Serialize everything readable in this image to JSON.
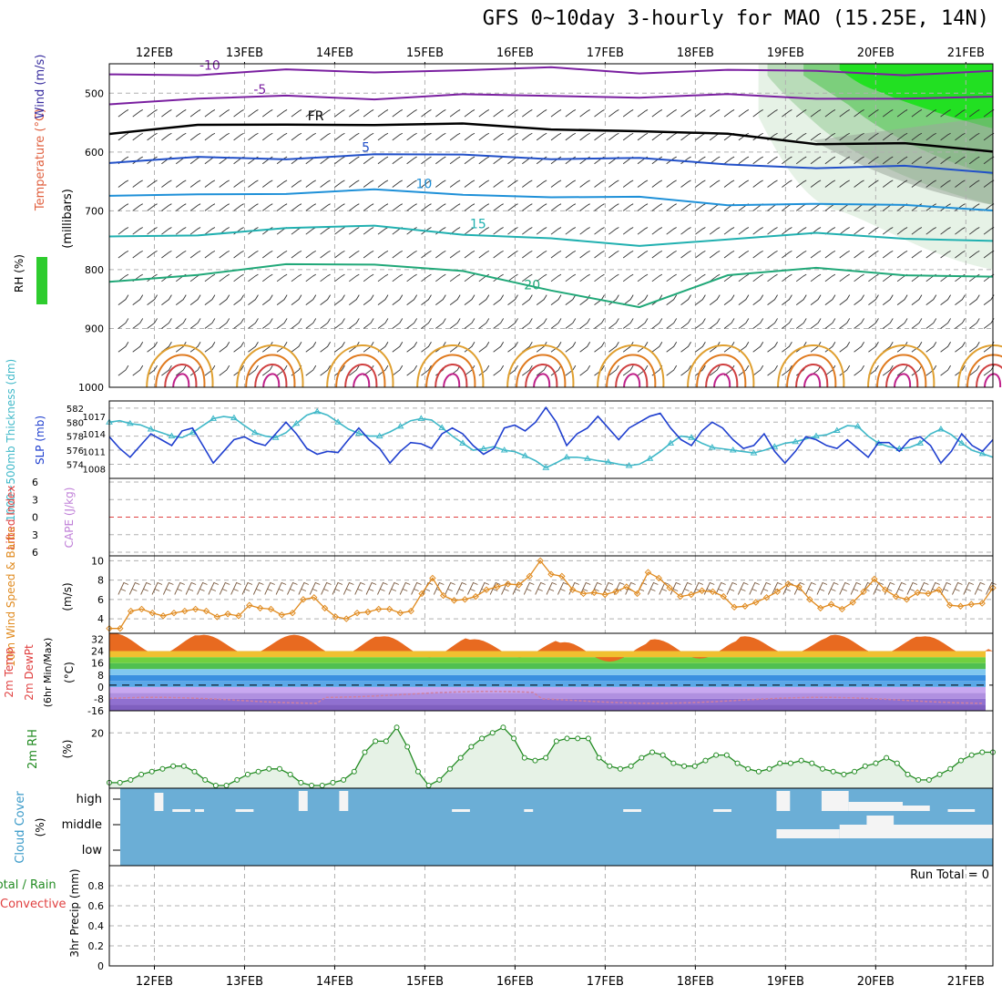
{
  "title": "GFS 0~10day 3-hourly for MAO (15.25E, 14N)",
  "date_labels": [
    "12FEB",
    "13FEB",
    "14FEB",
    "15FEB",
    "16FEB",
    "17FEB",
    "18FEB",
    "19FEB",
    "20FEB",
    "21FEB"
  ],
  "run_total": "Run Total = 0",
  "colors": {
    "grid": "#b0b0b0",
    "cloud": "#6baed6",
    "rh": "#228b22",
    "slp": "#1f3fcf",
    "thick": "#3fb8c8",
    "wind10": "#e08a1e"
  },
  "chart_data": [
    {
      "type": "line",
      "name": "upper-air",
      "ylabel_parts": [
        "RH (%)",
        "Temperature (°C)",
        "Wind (m/s)"
      ],
      "ylabel_units": "(millibars)",
      "y_ticks": [
        "500",
        "600",
        "700",
        "800",
        "900",
        "1000"
      ],
      "ylim": [
        450,
        1000
      ],
      "x_day_range": [
        11.5,
        21.3
      ],
      "isotherms": [
        {
          "label": "-10",
          "p": [
            468,
            466,
            464,
            462,
            460,
            460,
            462,
            462,
            464,
            465,
            466
          ]
        },
        {
          "label": "-5",
          "p": [
            515,
            510,
            507,
            506,
            505,
            505,
            504,
            506,
            507,
            508,
            510
          ]
        },
        {
          "label": "FR",
          "p": [
            565,
            558,
            552,
            552,
            556,
            558,
            565,
            572,
            582,
            588,
            600
          ]
        },
        {
          "label": "5",
          "p": [
            618,
            612,
            608,
            606,
            606,
            608,
            614,
            620,
            625,
            628,
            632
          ]
        },
        {
          "label": "10",
          "p": [
            678,
            672,
            668,
            668,
            670,
            676,
            680,
            686,
            690,
            692,
            695
          ]
        },
        {
          "label": "15",
          "p": [
            748,
            738,
            730,
            728,
            736,
            750,
            760,
            745,
            742,
            745,
            750
          ]
        },
        {
          "label": "20",
          "p": [
            822,
            805,
            795,
            790,
            800,
            840,
            860,
            810,
            800,
            805,
            815
          ]
        }
      ],
      "isotherm_labels": [
        "-10",
        "-5",
        "FR",
        "5",
        "10",
        "15",
        "20"
      ],
      "rh_legend": "RH (%)"
    },
    {
      "type": "line",
      "name": "thickness-slp",
      "ylabel": "1000~500mb Thickness (dm)",
      "ylabel2": "SLP (mb)",
      "left_ticks": [
        "582",
        "580",
        "578",
        "576",
        "574"
      ],
      "right_ticks": [
        "1017",
        "1014",
        "1011",
        "1008"
      ],
      "series": [
        {
          "name": "Thickness",
          "color": "#3fb8c8",
          "values": [
            580,
            580.2,
            579.8,
            579.6,
            579,
            578.5,
            578,
            577.8,
            578.5,
            579.5,
            580.5,
            580.8,
            580.6,
            579.5,
            578.5,
            578,
            577.8,
            578.5,
            579.8,
            581,
            581.5,
            581,
            580,
            579,
            578.4,
            578,
            578,
            578.6,
            579.4,
            580.2,
            580.5,
            580.3,
            579.2,
            578,
            577,
            576,
            576.2,
            576.5,
            576,
            575.8,
            575.2,
            574.5,
            573.5,
            574.2,
            575,
            575,
            574.8,
            574.5,
            574.3,
            574,
            573.8,
            574,
            574.8,
            575.8,
            577,
            578,
            577.8,
            577,
            576.4,
            576.2,
            576,
            575.8,
            575.6,
            576,
            576.5,
            577,
            577.2,
            577.6,
            578,
            578.2,
            578.8,
            579.5,
            579.4,
            578,
            577,
            576.5,
            576.2,
            576.4,
            577,
            578.3,
            579,
            578.2,
            577,
            576,
            575.5,
            575
          ]
        },
        {
          "name": "SLP",
          "color": "#1f3fcf",
          "values": [
            1013.5,
            1011.5,
            1010,
            1012,
            1014,
            1013,
            1012,
            1014.5,
            1015,
            1012,
            1009,
            1011,
            1013,
            1013.5,
            1012.5,
            1012,
            1014,
            1016,
            1014,
            1011.5,
            1010.5,
            1011,
            1010.8,
            1013,
            1015,
            1013,
            1011.5,
            1009,
            1011,
            1012.5,
            1012.3,
            1011.5,
            1014,
            1015,
            1014,
            1012,
            1010.5,
            1011.5,
            1015,
            1015.5,
            1014.5,
            1016,
            1018.5,
            1016,
            1012,
            1014,
            1015,
            1017,
            1015,
            1013,
            1015,
            1016,
            1017,
            1017.5,
            1015,
            1013,
            1012,
            1014.5,
            1016,
            1015,
            1013,
            1011.5,
            1012,
            1014,
            1011,
            1009,
            1011,
            1013.5,
            1013,
            1012,
            1011.5,
            1013,
            1011.5,
            1010,
            1012.5,
            1012.5,
            1011,
            1013,
            1013.5,
            1012,
            1009,
            1011,
            1014,
            1012,
            1011,
            1013
          ]
        }
      ]
    },
    {
      "type": "line",
      "name": "cape-li",
      "ylabel": "Lifted Index",
      "ylabel2": "CAPE (J/kg)",
      "y_ticks": [
        "6",
        "3",
        "0",
        "3",
        "6"
      ],
      "ylim": [
        -6,
        6
      ]
    },
    {
      "type": "line",
      "name": "wind10m",
      "ylabel": "10m Wind Speed & Barbs",
      "yunits": "(m/s)",
      "y_ticks": [
        "10",
        "8",
        "6",
        "4"
      ],
      "ylim": [
        2.5,
        10.5
      ],
      "series": [
        {
          "name": "Speed",
          "color": "#e08a1e",
          "values": [
            3,
            3,
            4.8,
            5,
            4.6,
            4.3,
            4.6,
            4.8,
            5,
            4.8,
            4.2,
            4.5,
            4.3,
            5.4,
            5.1,
            5,
            4.4,
            4.6,
            6,
            6.2,
            5.1,
            4.2,
            4,
            4.6,
            4.7,
            5,
            5,
            4.6,
            4.8,
            6.6,
            8.2,
            6.4,
            5.9,
            6,
            6.3,
            7,
            7.3,
            7.6,
            7.5,
            8.4,
            10,
            8.6,
            8.4,
            7,
            6.6,
            6.7,
            6.5,
            6.8,
            7.3,
            6.6,
            8.8,
            8.2,
            7.2,
            6.3,
            6.5,
            6.9,
            6.8,
            6.3,
            5.2,
            5.3,
            5.7,
            6.2,
            6.8,
            7.6,
            7.3,
            6,
            5.1,
            5.5,
            5,
            5.7,
            6.8,
            8.1,
            7,
            6.3,
            6,
            6.7,
            6.6,
            7,
            5.4,
            5.3,
            5.5,
            5.6,
            7.2
          ]
        }
      ]
    },
    {
      "type": "area",
      "name": "temp2m",
      "ylabel_parts": [
        "2m Temp",
        "2m DewPt",
        "(6hr Min/Max)"
      ],
      "yunits": "(°C)",
      "y_ticks": [
        "32",
        "24",
        "16",
        "8",
        "0",
        "-8",
        "-16"
      ],
      "ylim": [
        -16,
        36
      ],
      "temp_max_days": [
        36,
        35,
        35,
        34,
        32,
        30,
        32,
        34,
        35,
        34
      ],
      "temp_min_days": [
        22,
        22,
        21,
        20,
        20,
        17,
        19,
        22,
        22,
        21
      ]
    },
    {
      "type": "area",
      "name": "rh2m",
      "ylabel": "2m RH",
      "yunits": "(%)",
      "y_ticks": [
        "20"
      ],
      "ylim": [
        0,
        28
      ],
      "series": [
        {
          "name": "2m RH",
          "color": "#228b22",
          "values": [
            2,
            2,
            3,
            5,
            6,
            7,
            8,
            8,
            6,
            3,
            1,
            1,
            3,
            5,
            6,
            7,
            7,
            5,
            2,
            1,
            1,
            2,
            3,
            6,
            13,
            17,
            17,
            22,
            15,
            6,
            1,
            3,
            7,
            11,
            15,
            18,
            20,
            22,
            18,
            11,
            10,
            11,
            17,
            18,
            18,
            18,
            11,
            8,
            7,
            8,
            11,
            13,
            12,
            9,
            8,
            8,
            10,
            12,
            12,
            9,
            7,
            6,
            7,
            9,
            9,
            10,
            9,
            7,
            6,
            5,
            6,
            8,
            9,
            11,
            9,
            5,
            3,
            3,
            5,
            7,
            10,
            12,
            13,
            13
          ]
        }
      ]
    },
    {
      "type": "heatmap",
      "name": "cloud-cover",
      "ylabel": "Cloud Cover",
      "yunits": "(%)",
      "y_ticks": [
        "high",
        "middle",
        "low"
      ]
    },
    {
      "type": "bar",
      "name": "precip",
      "ylabel_parts": [
        "Total / Rain",
        "Convective"
      ],
      "yunits": "3hr Precip (mm)",
      "y_ticks": [
        "0.8",
        "0.6",
        "0.4",
        "0.2",
        "0"
      ],
      "ylim": [
        0,
        1
      ],
      "values": []
    }
  ]
}
